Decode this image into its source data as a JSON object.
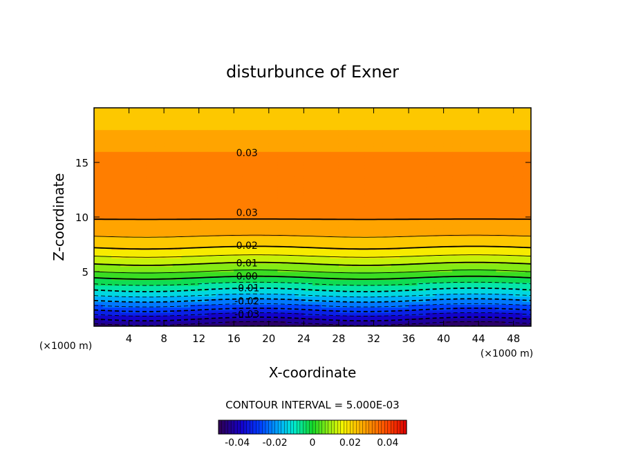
{
  "chart_data": {
    "type": "heatmap",
    "title": "disturbunce of Exner",
    "xlabel": "X-coordinate",
    "ylabel": "Z-coordinate",
    "xunit_left": "(×1000 m)",
    "xunit_right": "(×1000 m)",
    "xlim": [
      0,
      50
    ],
    "ylim": [
      0,
      20
    ],
    "x_ticks": [
      4,
      8,
      12,
      16,
      20,
      24,
      28,
      32,
      36,
      40,
      44,
      48
    ],
    "x_tick_labels": [
      "4",
      "8",
      "12",
      "16",
      "20",
      "24",
      "28",
      "32",
      "36",
      "40",
      "44",
      "48"
    ],
    "y_ticks": [
      5,
      10,
      15
    ],
    "y_tick_labels": [
      "5",
      "10",
      "15"
    ],
    "contour_interval_text": "CONTOUR INTERVAL = 5.000E-03",
    "contour_interval": 0.005,
    "contour_labels": [
      {
        "text": "0.03",
        "x": 17.5,
        "z": 15.9
      },
      {
        "text": "0.03",
        "x": 17.5,
        "z": 10.4
      },
      {
        "text": "0.02",
        "x": 17.5,
        "z": 7.4
      },
      {
        "text": "0.01",
        "x": 17.5,
        "z": 5.8
      },
      {
        "text": "0.00",
        "x": 17.5,
        "z": 4.6
      },
      {
        "text": "-0.01",
        "x": 17.5,
        "z": 3.5
      },
      {
        "text": "-0.02",
        "x": 17.5,
        "z": 2.3
      },
      {
        "text": "-0.03",
        "x": 17.5,
        "z": 1.1
      }
    ],
    "profile_z": [
      0,
      1,
      2,
      3,
      4,
      5,
      6,
      7,
      8,
      9,
      10,
      11,
      12,
      13,
      14,
      15,
      16,
      17,
      18,
      20
    ],
    "profile_values": [
      -0.048,
      -0.036,
      -0.024,
      -0.013,
      -0.004,
      0.005,
      0.012,
      0.019,
      0.024,
      0.028,
      0.0305,
      0.0325,
      0.0335,
      0.034,
      0.0335,
      0.032,
      0.03,
      0.0275,
      0.025,
      0.02
    ],
    "colorbar": {
      "min": -0.05,
      "max": 0.05,
      "tick_values": [
        -0.04,
        -0.02,
        0,
        0.02,
        0.04
      ],
      "tick_labels": [
        "-0.04",
        "-0.02",
        "0",
        "0.02",
        "0.04"
      ]
    }
  }
}
